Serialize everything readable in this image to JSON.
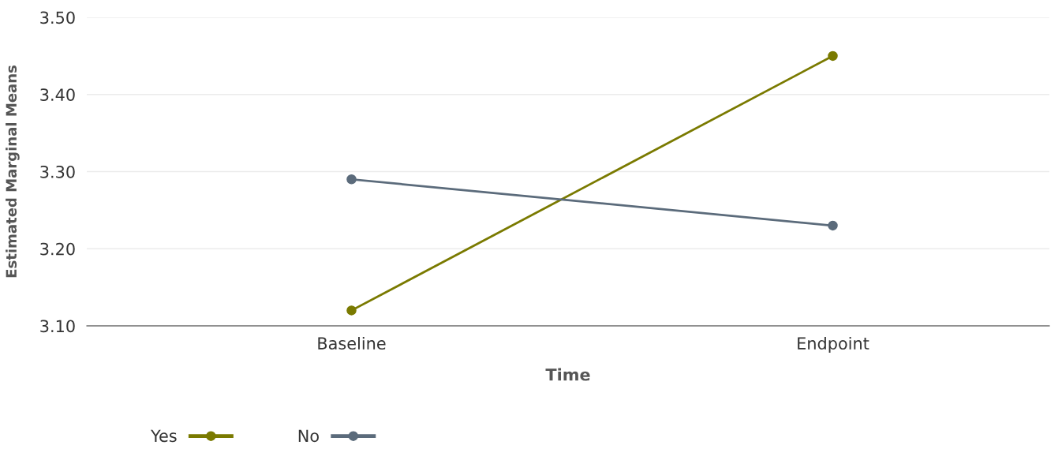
{
  "chart_data": {
    "type": "line",
    "xlabel": "Time",
    "ylabel": "Estimated Marginal Means",
    "categories": [
      "Baseline",
      "Endpoint"
    ],
    "series": [
      {
        "name": "Yes",
        "color": "#7a7a00",
        "values": [
          3.12,
          3.45
        ]
      },
      {
        "name": "No",
        "color": "#5b6b7b",
        "values": [
          3.29,
          3.23
        ]
      }
    ],
    "ylim": [
      3.1,
      3.5
    ],
    "yticks": [
      {
        "value": 3.1,
        "label": "3.10"
      },
      {
        "value": 3.2,
        "label": "3.20"
      },
      {
        "value": 3.3,
        "label": "3.30"
      },
      {
        "value": 3.4,
        "label": "3.40"
      },
      {
        "value": 3.5,
        "label": "3.50"
      }
    ],
    "grid": "y",
    "legend": "bottom left",
    "marker": "circle",
    "line_style": "solid"
  }
}
